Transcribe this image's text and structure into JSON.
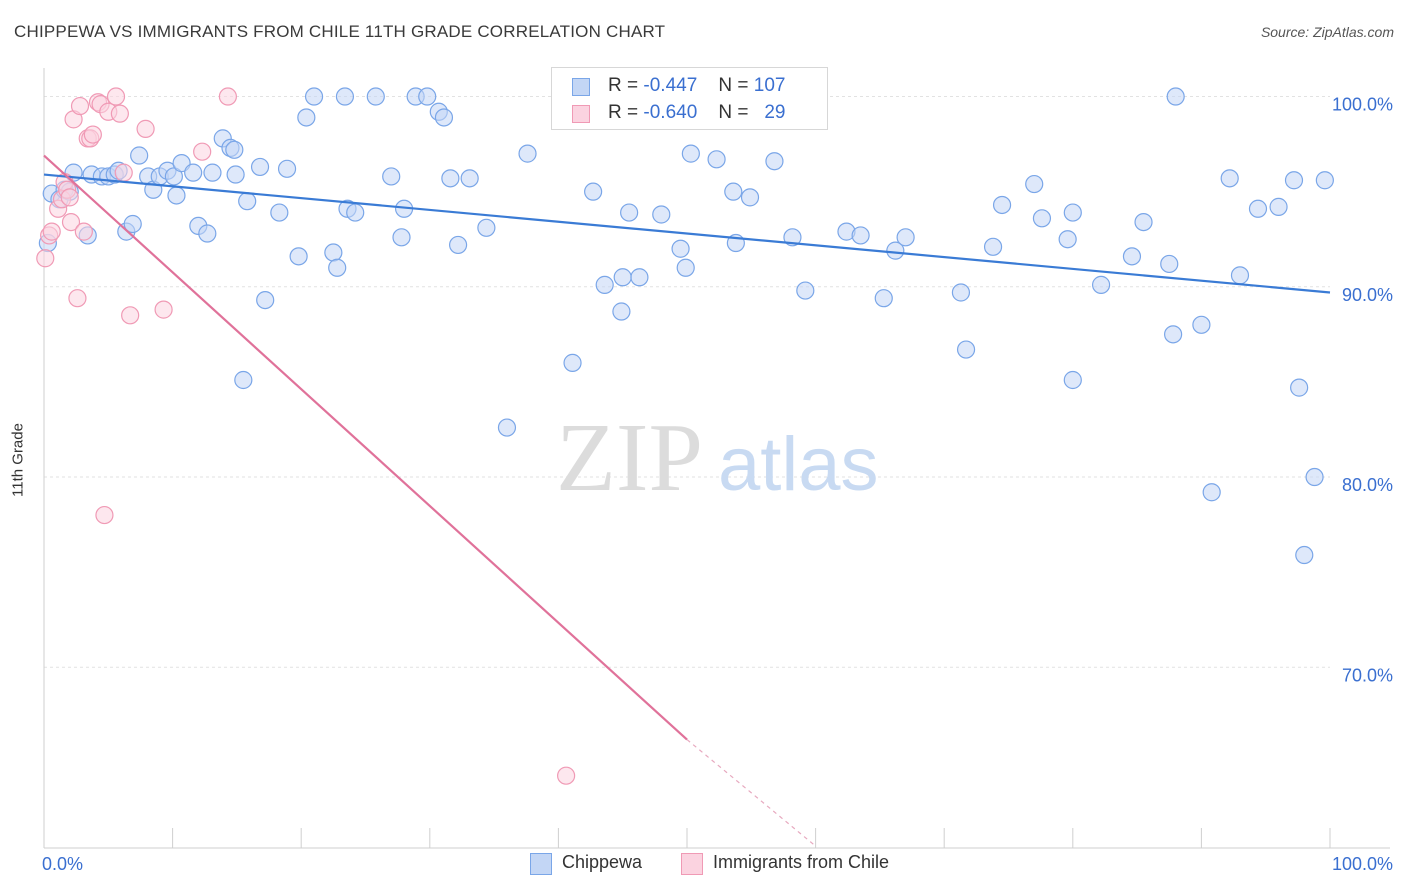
{
  "title": "CHIPPEWA VS IMMIGRANTS FROM CHILE 11TH GRADE CORRELATION CHART",
  "source": "Source: ZipAtlas.com",
  "watermark": {
    "zip": "ZIP",
    "atlas": "atlas"
  },
  "stats": [
    {
      "r_label": "R =",
      "r_value": "-0.447",
      "n_label": "N =",
      "n_value": "107",
      "color": "#7aa6e8",
      "fill": "#c3d6f5"
    },
    {
      "r_label": "R =",
      "r_value": "-0.640",
      "n_label": "N =",
      "n_value": "29",
      "color": "#f09ab5",
      "fill": "#fbd3e0"
    }
  ],
  "legend": [
    {
      "label": "Chippewa",
      "color": "#7aa6e8",
      "fill": "#c3d6f5"
    },
    {
      "label": "Immigrants from Chile",
      "color": "#f09ab5",
      "fill": "#fbd3e0"
    }
  ],
  "chart_data": {
    "type": "scatter",
    "title": "CHIPPEWA VS IMMIGRANTS FROM CHILE 11TH GRADE CORRELATION CHART",
    "xlabel": "",
    "ylabel": "11th Grade",
    "xlim": [
      0,
      100
    ],
    "ylim": [
      60.5,
      101.5
    ],
    "x_tick_labels": [
      {
        "value": 0,
        "label": "0.0%"
      },
      {
        "value": 100,
        "label": "100.0%"
      }
    ],
    "y_tick_labels": [
      {
        "value": 100,
        "label": "100.0%"
      },
      {
        "value": 90,
        "label": "90.0%"
      },
      {
        "value": 80,
        "label": "80.0%"
      },
      {
        "value": 70,
        "label": "70.0%"
      }
    ],
    "y_gridlines": [
      100,
      90,
      80,
      70
    ],
    "grid": true,
    "legend_position": "bottom",
    "series": [
      {
        "name": "Chippewa",
        "color": "#3a7bd5",
        "marker_fill": "#c3d6f5",
        "marker_edge": "#7aa6e8",
        "trend": {
          "x": [
            0,
            100
          ],
          "y": [
            95.9,
            89.7
          ]
        },
        "points": [
          {
            "x": 0.3,
            "y": 92.3
          },
          {
            "x": 0.6,
            "y": 94.9
          },
          {
            "x": 1.2,
            "y": 94.6
          },
          {
            "x": 1.6,
            "y": 95.1
          },
          {
            "x": 2.0,
            "y": 95.0
          },
          {
            "x": 2.3,
            "y": 96.0
          },
          {
            "x": 3.4,
            "y": 92.7
          },
          {
            "x": 3.7,
            "y": 95.9
          },
          {
            "x": 4.5,
            "y": 95.8
          },
          {
            "x": 5.0,
            "y": 95.8
          },
          {
            "x": 5.5,
            "y": 95.9
          },
          {
            "x": 5.8,
            "y": 96.1
          },
          {
            "x": 6.4,
            "y": 92.9
          },
          {
            "x": 6.9,
            "y": 93.3
          },
          {
            "x": 7.4,
            "y": 96.9
          },
          {
            "x": 8.1,
            "y": 95.8
          },
          {
            "x": 8.5,
            "y": 95.1
          },
          {
            "x": 9.0,
            "y": 95.8
          },
          {
            "x": 9.6,
            "y": 96.1
          },
          {
            "x": 10.1,
            "y": 95.8
          },
          {
            "x": 10.3,
            "y": 94.8
          },
          {
            "x": 10.7,
            "y": 96.5
          },
          {
            "x": 11.6,
            "y": 96.0
          },
          {
            "x": 12.0,
            "y": 93.2
          },
          {
            "x": 12.7,
            "y": 92.8
          },
          {
            "x": 13.1,
            "y": 96.0
          },
          {
            "x": 13.9,
            "y": 97.8
          },
          {
            "x": 14.5,
            "y": 97.3
          },
          {
            "x": 14.8,
            "y": 97.2
          },
          {
            "x": 14.9,
            "y": 95.9
          },
          {
            "x": 15.5,
            "y": 85.1
          },
          {
            "x": 15.8,
            "y": 94.5
          },
          {
            "x": 16.8,
            "y": 96.3
          },
          {
            "x": 17.2,
            "y": 89.3
          },
          {
            "x": 18.3,
            "y": 93.9
          },
          {
            "x": 18.9,
            "y": 96.2
          },
          {
            "x": 19.8,
            "y": 91.6
          },
          {
            "x": 20.4,
            "y": 98.9
          },
          {
            "x": 21.0,
            "y": 100.0
          },
          {
            "x": 22.5,
            "y": 91.8
          },
          {
            "x": 22.8,
            "y": 91.0
          },
          {
            "x": 23.4,
            "y": 100.0
          },
          {
            "x": 23.6,
            "y": 94.1
          },
          {
            "x": 24.2,
            "y": 93.9
          },
          {
            "x": 25.8,
            "y": 100.0
          },
          {
            "x": 27.0,
            "y": 95.8
          },
          {
            "x": 27.8,
            "y": 92.6
          },
          {
            "x": 28.0,
            "y": 94.1
          },
          {
            "x": 28.9,
            "y": 100.0
          },
          {
            "x": 29.8,
            "y": 100.0
          },
          {
            "x": 30.7,
            "y": 99.2
          },
          {
            "x": 31.1,
            "y": 98.9
          },
          {
            "x": 31.6,
            "y": 95.7
          },
          {
            "x": 32.2,
            "y": 92.2
          },
          {
            "x": 33.1,
            "y": 95.7
          },
          {
            "x": 34.4,
            "y": 93.1
          },
          {
            "x": 36.0,
            "y": 82.6
          },
          {
            "x": 37.6,
            "y": 97.0
          },
          {
            "x": 41.1,
            "y": 86.0
          },
          {
            "x": 42.7,
            "y": 95.0
          },
          {
            "x": 43.6,
            "y": 90.1
          },
          {
            "x": 44.9,
            "y": 88.7
          },
          {
            "x": 45.0,
            "y": 90.5
          },
          {
            "x": 45.5,
            "y": 93.9
          },
          {
            "x": 46.3,
            "y": 90.5
          },
          {
            "x": 48.0,
            "y": 93.8
          },
          {
            "x": 49.5,
            "y": 92.0
          },
          {
            "x": 49.9,
            "y": 91.0
          },
          {
            "x": 50.3,
            "y": 97.0
          },
          {
            "x": 52.3,
            "y": 96.7
          },
          {
            "x": 53.6,
            "y": 95.0
          },
          {
            "x": 53.8,
            "y": 92.3
          },
          {
            "x": 54.9,
            "y": 94.7
          },
          {
            "x": 56.8,
            "y": 96.6
          },
          {
            "x": 58.2,
            "y": 92.6
          },
          {
            "x": 59.2,
            "y": 89.8
          },
          {
            "x": 62.4,
            "y": 92.9
          },
          {
            "x": 63.5,
            "y": 92.7
          },
          {
            "x": 65.3,
            "y": 89.4
          },
          {
            "x": 66.2,
            "y": 91.9
          },
          {
            "x": 67.0,
            "y": 92.6
          },
          {
            "x": 71.3,
            "y": 89.7
          },
          {
            "x": 71.7,
            "y": 86.7
          },
          {
            "x": 73.8,
            "y": 92.1
          },
          {
            "x": 74.5,
            "y": 94.3
          },
          {
            "x": 77.0,
            "y": 95.4
          },
          {
            "x": 77.6,
            "y": 93.6
          },
          {
            "x": 79.6,
            "y": 92.5
          },
          {
            "x": 80.0,
            "y": 85.1
          },
          {
            "x": 80.0,
            "y": 93.9
          },
          {
            "x": 82.2,
            "y": 90.1
          },
          {
            "x": 84.6,
            "y": 91.6
          },
          {
            "x": 85.5,
            "y": 93.4
          },
          {
            "x": 87.5,
            "y": 91.2
          },
          {
            "x": 87.8,
            "y": 87.5
          },
          {
            "x": 88.0,
            "y": 100.0
          },
          {
            "x": 90.0,
            "y": 88.0
          },
          {
            "x": 90.8,
            "y": 79.2
          },
          {
            "x": 92.2,
            "y": 95.7
          },
          {
            "x": 93.0,
            "y": 90.6
          },
          {
            "x": 94.4,
            "y": 94.1
          },
          {
            "x": 96.0,
            "y": 94.2
          },
          {
            "x": 97.2,
            "y": 95.6
          },
          {
            "x": 97.6,
            "y": 84.7
          },
          {
            "x": 98.0,
            "y": 75.9
          },
          {
            "x": 98.8,
            "y": 80.0
          },
          {
            "x": 99.6,
            "y": 95.6
          }
        ]
      },
      {
        "name": "Immigrants from Chile",
        "color": "#e0729a",
        "marker_fill": "#fbd3e0",
        "marker_edge": "#f09ab5",
        "trend": {
          "x": [
            0,
            50
          ],
          "y": [
            96.9,
            66.2
          ],
          "dashed_to": {
            "x": 60,
            "y": 60.6
          }
        },
        "points": [
          {
            "x": 0.1,
            "y": 91.5
          },
          {
            "x": 0.4,
            "y": 92.7
          },
          {
            "x": 0.6,
            "y": 92.9
          },
          {
            "x": 1.1,
            "y": 94.1
          },
          {
            "x": 1.4,
            "y": 94.6
          },
          {
            "x": 1.6,
            "y": 95.5
          },
          {
            "x": 1.8,
            "y": 95.1
          },
          {
            "x": 2.0,
            "y": 94.7
          },
          {
            "x": 2.1,
            "y": 93.4
          },
          {
            "x": 2.3,
            "y": 98.8
          },
          {
            "x": 2.6,
            "y": 89.4
          },
          {
            "x": 2.8,
            "y": 99.5
          },
          {
            "x": 3.1,
            "y": 92.9
          },
          {
            "x": 3.4,
            "y": 97.8
          },
          {
            "x": 3.6,
            "y": 97.8
          },
          {
            "x": 3.8,
            "y": 98.0
          },
          {
            "x": 4.2,
            "y": 99.7
          },
          {
            "x": 4.4,
            "y": 99.6
          },
          {
            "x": 4.7,
            "y": 78.0
          },
          {
            "x": 5.0,
            "y": 99.2
          },
          {
            "x": 5.6,
            "y": 100.0
          },
          {
            "x": 5.9,
            "y": 99.1
          },
          {
            "x": 6.2,
            "y": 96.0
          },
          {
            "x": 6.7,
            "y": 88.5
          },
          {
            "x": 7.9,
            "y": 98.3
          },
          {
            "x": 9.3,
            "y": 88.8
          },
          {
            "x": 12.3,
            "y": 97.1
          },
          {
            "x": 14.3,
            "y": 100.0
          },
          {
            "x": 40.6,
            "y": 64.3
          }
        ]
      }
    ]
  }
}
